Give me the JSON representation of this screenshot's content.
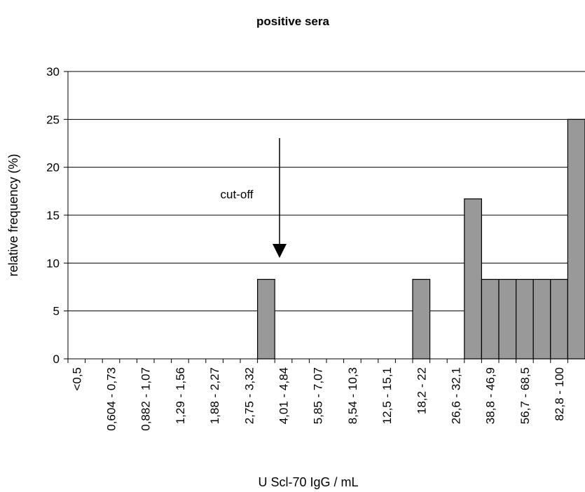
{
  "chart_data": {
    "type": "bar",
    "title": "positive sera",
    "x_label": "U  Scl-70 IgG / mL",
    "y_label": "relative frequency (%)",
    "annotation": "cut-off",
    "categories": [
      "<0,5",
      null,
      "0,604 - 0,73",
      null,
      "0,882 - 1,07",
      null,
      "1,29 - 1,56",
      null,
      "1,88 - 2,27",
      null,
      "2,75 - 3,32",
      null,
      "4,01 - 4,84",
      null,
      "5,85 - 7,07",
      null,
      "8,54 - 10,3",
      null,
      "12,5 - 15,1",
      null,
      "18,2 - 22",
      null,
      "26,6 - 32,1",
      null,
      "38,8 - 46,9",
      null,
      "56,7 - 68,5",
      null,
      "82,8 - 100",
      null
    ],
    "values": [
      0,
      0,
      0,
      0,
      0,
      0,
      0,
      0,
      0,
      0,
      0,
      8.3,
      0,
      0,
      0,
      0,
      0,
      0,
      0,
      0,
      8.3,
      0,
      0,
      16.7,
      8.3,
      8.3,
      8.3,
      8.3,
      8.3,
      25
    ],
    "color": "#999999",
    "ylim": [
      0,
      30
    ],
    "yticks": [
      0,
      5,
      10,
      15,
      20,
      25,
      30
    ],
    "grid": true
  }
}
